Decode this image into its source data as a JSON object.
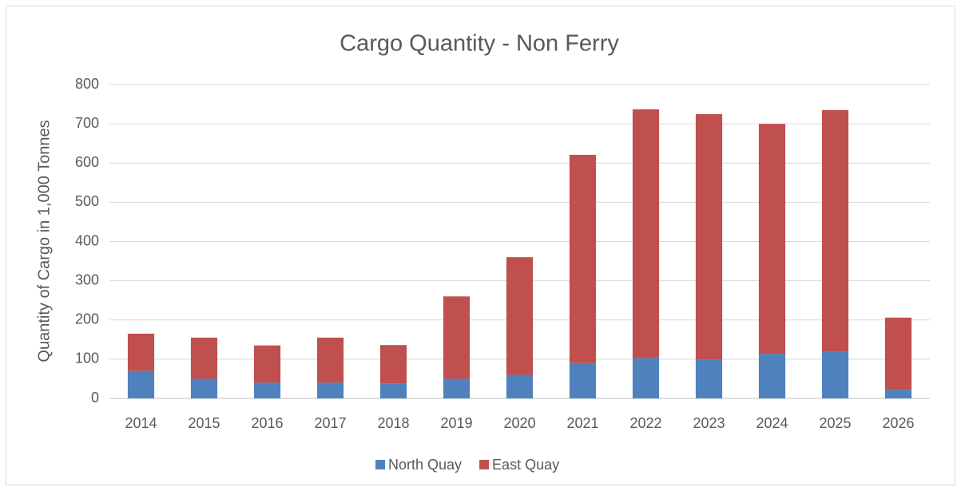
{
  "chart_data": {
    "type": "stacked_bar",
    "title": "Cargo Quantity - Non Ferry",
    "y_label": "Quantity of Cargo in 1,000 Tonnes",
    "categories": [
      "2014",
      "2015",
      "2016",
      "2017",
      "2018",
      "2019",
      "2020",
      "2021",
      "2022",
      "2023",
      "2024",
      "2025",
      "2026"
    ],
    "series": [
      {
        "name": "North Quay",
        "color": "#4f81bd",
        "values": [
          70,
          50,
          40,
          40,
          38,
          50,
          60,
          90,
          103,
          98,
          116,
          120,
          22
        ]
      },
      {
        "name": "East Quay",
        "color": "#c0504d",
        "values": [
          95,
          105,
          95,
          115,
          98,
          210,
          300,
          531,
          634,
          627,
          584,
          615,
          184
        ]
      }
    ],
    "ylim": [
      0,
      800
    ],
    "yticks": [
      0,
      100,
      200,
      300,
      400,
      500,
      600,
      700,
      800
    ],
    "grid": true,
    "legend": "bottom"
  }
}
